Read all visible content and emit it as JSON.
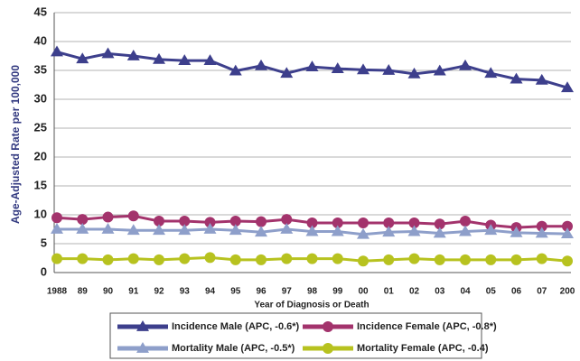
{
  "chart_data": {
    "type": "line",
    "x_label": "Year of Diagnosis or Death",
    "y_label": "Age-Adjusted Rate per 100,000",
    "categories": [
      "1988",
      "89",
      "90",
      "91",
      "92",
      "93",
      "94",
      "95",
      "96",
      "97",
      "98",
      "99",
      "00",
      "01",
      "02",
      "03",
      "04",
      "05",
      "06",
      "07",
      "200"
    ],
    "series": [
      {
        "name": "Incidence Male (APC, -0.6*)",
        "color": "#3d3f8c",
        "marker": "triangle",
        "values": [
          38.2,
          37.0,
          37.9,
          37.5,
          36.9,
          36.7,
          36.7,
          34.9,
          35.8,
          34.5,
          35.6,
          35.3,
          35.1,
          35.0,
          34.4,
          34.9,
          35.8,
          34.5,
          33.5,
          33.3,
          32.0
        ]
      },
      {
        "name": "Incidence Female (APC, -0.8*)",
        "color": "#a3336c",
        "marker": "circle",
        "values": [
          9.5,
          9.2,
          9.6,
          9.8,
          8.9,
          8.9,
          8.7,
          8.9,
          8.8,
          9.2,
          8.6,
          8.6,
          8.6,
          8.6,
          8.6,
          8.4,
          8.9,
          8.2,
          7.8,
          8.0,
          8.0
        ]
      },
      {
        "name": "Mortality Male (APC, -0.5*)",
        "color": "#8e9fca",
        "marker": "triangle",
        "values": [
          7.5,
          7.5,
          7.5,
          7.3,
          7.3,
          7.3,
          7.5,
          7.3,
          7.0,
          7.5,
          7.1,
          7.1,
          6.6,
          7.0,
          7.1,
          6.8,
          7.1,
          7.3,
          6.9,
          6.8,
          6.7
        ]
      },
      {
        "name": "Mortality Female (APC, -0.4)",
        "color": "#b7c21f",
        "marker": "circle",
        "values": [
          2.4,
          2.4,
          2.2,
          2.4,
          2.2,
          2.4,
          2.6,
          2.2,
          2.2,
          2.4,
          2.4,
          2.4,
          2.0,
          2.2,
          2.4,
          2.2,
          2.2,
          2.2,
          2.2,
          2.4,
          2.0
        ]
      }
    ],
    "ylim": [
      0,
      45
    ],
    "yticks": [
      0,
      5,
      10,
      15,
      20,
      25,
      30,
      35,
      40,
      45
    ],
    "grid": true,
    "legend_position": "bottom"
  }
}
